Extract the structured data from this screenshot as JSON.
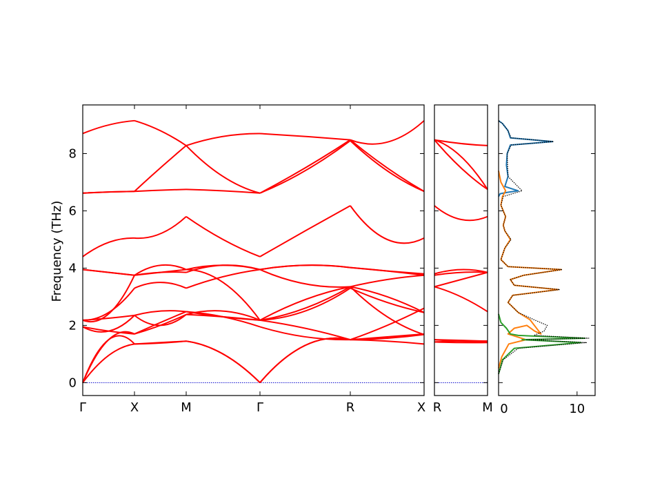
{
  "chart_data": {
    "type": "line",
    "ylabel": "Frequency (THz)",
    "ylim": [
      -0.45,
      9.7
    ],
    "yticks": [
      0,
      2,
      4,
      6,
      8
    ],
    "band_color": "#ff0000",
    "zero_line_color": "#0000cc",
    "panels": [
      {
        "name": "band-main",
        "segments": [
          "Γ-X",
          "X-M",
          "M-Γ",
          "Γ-R",
          "R-X"
        ],
        "x_tick_labels": [
          "Γ",
          "X",
          "M",
          "Γ",
          "R",
          "X"
        ],
        "knots_per_segment": [
          [
            [
              0,
              0.95,
              1.35
            ],
            [
              0,
              1.5,
              1.35
            ],
            [
              0,
              1.5,
              1.7
            ],
            [
              1.95,
              1.8,
              1.7
            ],
            [
              1.95,
              1.8,
              2.35
            ],
            [
              2.18,
              2.25,
              2.35
            ],
            [
              2.18,
              2.45,
              3.3
            ],
            [
              2.18,
              2.4,
              3.75
            ],
            [
              3.95,
              3.85,
              3.75
            ],
            [
              3.95,
              3.85,
              3.75
            ],
            [
              4.4,
              4.9,
              5.05
            ],
            [
              6.62,
              6.66,
              6.68
            ],
            [
              6.62,
              6.66,
              6.68
            ],
            [
              8.7,
              9.0,
              9.15
            ]
          ],
          [
            [
              1.35,
              1.38,
              1.45
            ],
            [
              1.35,
              1.4,
              1.45
            ],
            [
              1.7,
              2.1,
              2.48
            ],
            [
              1.7,
              2.0,
              2.38
            ],
            [
              2.35,
              2.5,
              2.48
            ],
            [
              2.35,
              2.0,
              2.38
            ],
            [
              3.3,
              3.5,
              3.3
            ],
            [
              3.75,
              3.85,
              3.85
            ],
            [
              3.75,
              3.85,
              3.95
            ],
            [
              3.75,
              4.1,
              3.95
            ],
            [
              5.05,
              5.2,
              5.8
            ],
            [
              6.68,
              6.72,
              6.75
            ],
            [
              6.68,
              7.5,
              8.28
            ],
            [
              9.15,
              8.8,
              8.28
            ]
          ],
          [
            [
              1.45,
              1.0,
              0.0
            ],
            [
              1.45,
              1.0,
              0.0
            ],
            [
              2.48,
              2.3,
              1.95
            ],
            [
              2.38,
              2.3,
              2.18
            ],
            [
              2.48,
              2.3,
              2.18
            ],
            [
              2.38,
              2.5,
              2.18
            ],
            [
              3.3,
              3.7,
              3.95
            ],
            [
              3.85,
              4.1,
              3.95
            ],
            [
              3.95,
              3.5,
              2.18
            ],
            [
              3.95,
              4.1,
              3.95
            ],
            [
              5.8,
              5.0,
              4.4
            ],
            [
              6.75,
              6.7,
              6.62
            ],
            [
              8.28,
              7.2,
              6.62
            ],
            [
              8.28,
              8.6,
              8.7
            ]
          ],
          [
            [
              0.0,
              1.3,
              1.5
            ],
            [
              0.0,
              1.3,
              1.5
            ],
            [
              1.95,
              1.6,
              1.5
            ],
            [
              2.18,
              2.5,
              3.3
            ],
            [
              2.18,
              2.6,
              3.35
            ],
            [
              2.18,
              2.9,
              3.35
            ],
            [
              3.95,
              3.45,
              3.35
            ],
            [
              3.95,
              4.1,
              4.02
            ],
            [
              3.95,
              4.1,
              4.02
            ],
            [
              2.18,
              1.9,
              1.5
            ],
            [
              4.4,
              5.3,
              6.18
            ],
            [
              6.62,
              7.4,
              8.45
            ],
            [
              6.62,
              7.5,
              8.48
            ],
            [
              8.7,
              8.6,
              8.48
            ]
          ],
          [
            [
              1.5,
              1.45,
              1.35
            ],
            [
              1.5,
              1.55,
              1.68
            ],
            [
              1.5,
              1.6,
              1.7
            ],
            [
              3.3,
              2.8,
              2.45
            ],
            [
              3.35,
              3.0,
              2.45
            ],
            [
              3.35,
              3.6,
              3.75
            ],
            [
              4.02,
              3.9,
              3.75
            ],
            [
              4.02,
              3.9,
              3.8
            ],
            [
              3.35,
              2.3,
              1.68
            ],
            [
              1.5,
              2.0,
              2.6
            ],
            [
              6.18,
              5.0,
              5.05
            ],
            [
              8.45,
              7.4,
              6.68
            ],
            [
              8.48,
              7.5,
              6.68
            ],
            [
              8.48,
              8.4,
              9.15
            ]
          ]
        ]
      },
      {
        "name": "band-side",
        "segments": [
          "R-M"
        ],
        "x_tick_labels": [
          "R",
          "M"
        ],
        "knots_per_segment": [
          [
            [
              1.5,
              1.48,
              1.45
            ],
            [
              1.5,
              1.45,
              1.45
            ],
            [
              1.42,
              1.4,
              1.4
            ],
            [
              1.42,
              1.45,
              1.45
            ],
            [
              3.35,
              3.0,
              2.48
            ],
            [
              3.35,
              3.6,
              3.85
            ],
            [
              3.75,
              3.85,
              3.85
            ],
            [
              3.8,
              3.95,
              3.85
            ],
            [
              6.18,
              5.7,
              5.8
            ],
            [
              8.48,
              7.5,
              6.75
            ],
            [
              8.48,
              7.9,
              6.75
            ],
            [
              8.48,
              8.35,
              8.28
            ]
          ]
        ]
      }
    ],
    "dos": {
      "x_ticks": [
        0,
        10
      ],
      "xlim": [
        0,
        12.3
      ],
      "series": [
        {
          "color": "#1f77b4",
          "points": [
            [
              0,
              6.5
            ],
            [
              0.2,
              6.6
            ],
            [
              1.2,
              6.65
            ],
            [
              2.5,
              6.7
            ],
            [
              0.8,
              6.85
            ],
            [
              1.2,
              7.2
            ],
            [
              1.0,
              7.6
            ],
            [
              1.1,
              8.0
            ],
            [
              1.5,
              8.3
            ],
            [
              6.9,
              8.42
            ],
            [
              1.5,
              8.55
            ],
            [
              1.2,
              8.8
            ],
            [
              0.5,
              9.05
            ],
            [
              0,
              9.15
            ]
          ]
        },
        {
          "color": "#ff7f0e",
          "points": [
            [
              0,
              0.5
            ],
            [
              0.4,
              0.9
            ],
            [
              1.3,
              1.35
            ],
            [
              3.5,
              1.5
            ],
            [
              1.2,
              1.7
            ],
            [
              2.0,
              1.9
            ],
            [
              3.6,
              2.0
            ],
            [
              4.6,
              1.8
            ],
            [
              5.4,
              1.7
            ],
            [
              4.0,
              2.2
            ],
            [
              2.5,
              2.45
            ],
            [
              1.2,
              2.8
            ],
            [
              1.8,
              3.05
            ],
            [
              7.6,
              3.25
            ],
            [
              2.0,
              3.4
            ],
            [
              1.5,
              3.6
            ],
            [
              3.2,
              3.75
            ],
            [
              8.0,
              3.95
            ],
            [
              1.2,
              4.05
            ],
            [
              0.3,
              4.3
            ],
            [
              0.8,
              4.7
            ],
            [
              1.5,
              5.0
            ],
            [
              0.8,
              5.3
            ],
            [
              0.6,
              5.5
            ],
            [
              0.9,
              5.8
            ],
            [
              0.3,
              6.2
            ],
            [
              0.5,
              6.5
            ],
            [
              0.9,
              6.7
            ],
            [
              0.3,
              7.0
            ],
            [
              0,
              7.4
            ]
          ]
        },
        {
          "color": "#2ca02c",
          "points": [
            [
              0,
              0.3
            ],
            [
              0.5,
              0.8
            ],
            [
              2.0,
              1.2
            ],
            [
              10.5,
              1.4
            ],
            [
              3.0,
              1.5
            ],
            [
              11.0,
              1.55
            ],
            [
              2.5,
              1.65
            ],
            [
              1.5,
              1.7
            ],
            [
              1.0,
              1.9
            ],
            [
              0.3,
              2.1
            ],
            [
              0,
              2.4
            ]
          ]
        },
        {
          "color": "#000000",
          "dashed": true,
          "points": [
            [
              0,
              0.3
            ],
            [
              0.6,
              0.8
            ],
            [
              2.5,
              1.2
            ],
            [
              11.2,
              1.4
            ],
            [
              3.5,
              1.5
            ],
            [
              11.5,
              1.55
            ],
            [
              4.5,
              1.65
            ],
            [
              5.8,
              1.8
            ],
            [
              6.2,
              2.0
            ],
            [
              4.5,
              2.2
            ],
            [
              2.5,
              2.45
            ],
            [
              1.2,
              2.8
            ],
            [
              1.8,
              3.05
            ],
            [
              7.8,
              3.25
            ],
            [
              2.0,
              3.4
            ],
            [
              1.5,
              3.6
            ],
            [
              3.2,
              3.75
            ],
            [
              8.1,
              3.95
            ],
            [
              1.2,
              4.05
            ],
            [
              0.3,
              4.3
            ],
            [
              0.8,
              4.7
            ],
            [
              1.6,
              5.0
            ],
            [
              0.8,
              5.3
            ],
            [
              0.6,
              5.5
            ],
            [
              0.9,
              5.8
            ],
            [
              0.3,
              6.2
            ],
            [
              0.6,
              6.5
            ],
            [
              3.0,
              6.7
            ],
            [
              1.2,
              7.2
            ],
            [
              1.1,
              8.0
            ],
            [
              1.6,
              8.3
            ],
            [
              7.0,
              8.42
            ],
            [
              1.6,
              8.55
            ],
            [
              1.2,
              8.8
            ],
            [
              0.5,
              9.05
            ],
            [
              0,
              9.15
            ]
          ]
        }
      ]
    }
  }
}
